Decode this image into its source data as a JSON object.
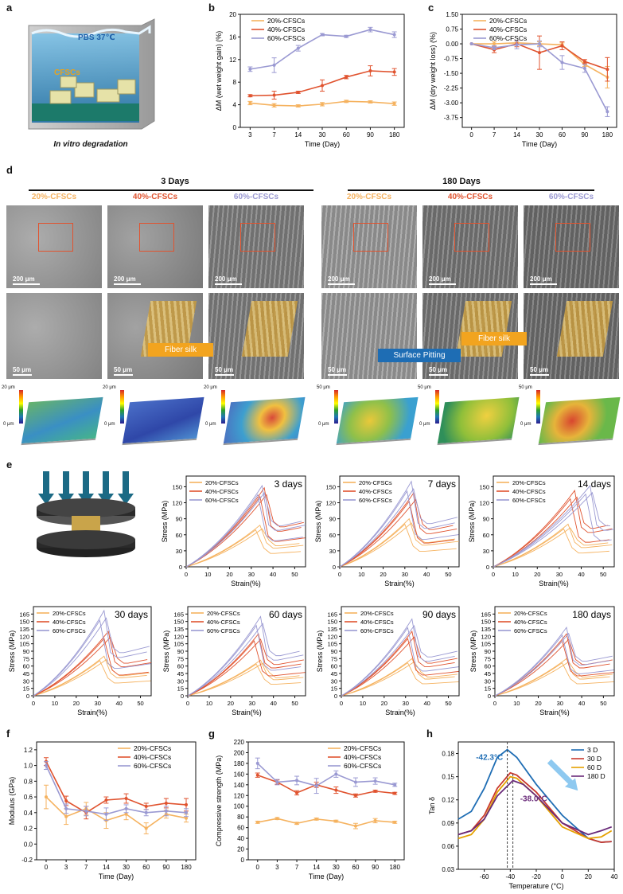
{
  "colors": {
    "c20": "#F5B25F",
    "c40": "#E0532F",
    "c60": "#9A99D2",
    "d3": "#1E6DB4",
    "d30": "#C9392E",
    "d60": "#E5A100",
    "d180": "#6A2B7A"
  },
  "panel_a": {
    "letter": "a",
    "liquid_label": "PBS  37℃",
    "sample_label": "CFSCs",
    "caption": "In vitro degradation"
  },
  "panel_d": {
    "letter": "d",
    "group_3": "3 Days",
    "group_180": "180 Days",
    "labels": [
      "20%-CFSCs",
      "40%-CFSCs",
      "60%-CFSCs",
      "20%-CFSCs",
      "40%-CFSCs",
      "60%-CFSCs"
    ],
    "scale_200": "200 μm",
    "scale_50": "50 μm",
    "callout_fiber_1": "Fiber silk",
    "callout_pitting": "Surface Pitting",
    "callout_fiber_2": "Fiber silk",
    "zmax_3": "20 μm",
    "zmax_180": "50 μm",
    "zmin": "0 μm"
  },
  "panel_e_letter": "e",
  "chart_data": [
    {
      "id": "b",
      "type": "line",
      "title": "",
      "xlabel": "Time (Day)",
      "ylabel": "ΔM (wet weight gain) (%)",
      "categories": [
        "3",
        "7",
        "14",
        "30",
        "60",
        "90",
        "180"
      ],
      "ylim": [
        0,
        20
      ],
      "yticks": [
        0,
        4,
        8,
        12,
        16,
        20
      ],
      "series": [
        {
          "name": "20%-CFSCs",
          "values": [
            4.3,
            3.9,
            3.8,
            4.1,
            4.6,
            4.5,
            4.2
          ],
          "err": [
            0.3,
            0.3,
            0.2,
            0.3,
            0.2,
            0.2,
            0.3
          ]
        },
        {
          "name": "40%-CFSCs",
          "values": [
            5.6,
            5.7,
            6.2,
            7.4,
            8.9,
            10.0,
            9.8
          ],
          "err": [
            0.2,
            0.7,
            0.2,
            1.0,
            0.3,
            0.9,
            0.6
          ]
        },
        {
          "name": "60%-CFSCs",
          "values": [
            10.3,
            11.0,
            14.0,
            16.4,
            16.1,
            17.3,
            16.4
          ],
          "err": [
            0.4,
            1.3,
            0.5,
            0.2,
            0.2,
            0.4,
            0.5
          ]
        }
      ]
    },
    {
      "id": "c",
      "type": "line",
      "title": "",
      "xlabel": "Time (Day)",
      "ylabel": "ΔM (dry weight loss) (%)",
      "categories": [
        "0",
        "7",
        "14",
        "30",
        "60",
        "90",
        "180"
      ],
      "ylim": [
        -4.25,
        1.5
      ],
      "yticks": [
        1.5,
        0.75,
        0.0,
        -0.75,
        -1.5,
        -2.25,
        -3.0,
        -3.75
      ],
      "series": [
        {
          "name": "20%-CFSCs",
          "values": [
            0,
            0.0,
            0.05,
            0.0,
            -0.05,
            -1.05,
            -1.7
          ],
          "err": [
            0,
            0.1,
            0.1,
            0.1,
            0.1,
            0.1,
            0.55
          ]
        },
        {
          "name": "40%-CFSCs",
          "values": [
            0,
            -0.3,
            0.0,
            -0.45,
            -0.1,
            -0.9,
            -1.3
          ],
          "err": [
            0,
            0.15,
            0.15,
            0.85,
            0.2,
            0.1,
            0.6
          ]
        },
        {
          "name": "60%-CFSCs",
          "values": [
            0,
            -0.2,
            -0.05,
            0.0,
            -0.95,
            -1.25,
            -3.45
          ],
          "err": [
            0,
            0.1,
            0.2,
            0.15,
            0.35,
            0.2,
            0.25
          ]
        }
      ]
    },
    {
      "id": "e1",
      "type": "line",
      "title": "3 days",
      "xlabel": "Strain(%)",
      "ylabel": "Stress (MPa)",
      "ylim": [
        0,
        170
      ],
      "xlim": [
        0,
        55
      ],
      "yticks": [
        0,
        30,
        60,
        90,
        120,
        150
      ],
      "xticks": [
        0,
        10,
        20,
        30,
        40,
        50
      ],
      "peaks": [
        {
          "series": "20%-CFSCs",
          "strain": 34,
          "stress": 78
        },
        {
          "series": "40%-CFSCs",
          "strain": 36,
          "stress": 148
        },
        {
          "series": "60%-CFSCs",
          "strain": 35,
          "stress": 152
        }
      ]
    },
    {
      "id": "e2",
      "type": "line",
      "title": "7 days",
      "xlabel": "Strain(%)",
      "ylabel": "Stress (MPa)",
      "ylim": [
        0,
        170
      ],
      "xlim": [
        0,
        55
      ],
      "yticks": [
        0,
        30,
        60,
        90,
        120,
        150
      ],
      "xticks": [
        0,
        10,
        20,
        30,
        40,
        50
      ],
      "peaks": [
        {
          "series": "20%-CFSCs",
          "strain": 32,
          "stress": 90
        },
        {
          "series": "40%-CFSCs",
          "strain": 34,
          "stress": 138
        },
        {
          "series": "60%-CFSCs",
          "strain": 33,
          "stress": 160
        }
      ]
    },
    {
      "id": "e3",
      "type": "line",
      "title": "14 days",
      "xlabel": "Strain(%)",
      "ylabel": "Stress (MPa)",
      "ylim": [
        0,
        170
      ],
      "xlim": [
        0,
        55
      ],
      "yticks": [
        0,
        30,
        60,
        90,
        120,
        150
      ],
      "xticks": [
        0,
        10,
        20,
        30,
        40,
        50
      ],
      "peaks": [
        {
          "series": "20%-CFSCs",
          "strain": 34,
          "stress": 80
        },
        {
          "series": "40%-CFSCs",
          "strain": 37,
          "stress": 143
        },
        {
          "series": "60%-CFSCs",
          "strain": 44,
          "stress": 152
        }
      ]
    },
    {
      "id": "e4",
      "type": "line",
      "title": "30 days",
      "xlabel": "Strain(%)",
      "ylabel": "Stress (MPa)",
      "ylim": [
        0,
        180
      ],
      "xlim": [
        0,
        55
      ],
      "yticks": [
        0,
        15,
        30,
        45,
        60,
        75,
        90,
        105,
        120,
        135,
        150,
        165
      ],
      "xticks": [
        0,
        10,
        20,
        30,
        40,
        50
      ],
      "peaks": [
        {
          "series": "20%-CFSCs",
          "strain": 33,
          "stress": 80
        },
        {
          "series": "40%-CFSCs",
          "strain": 35,
          "stress": 130
        },
        {
          "series": "60%-CFSCs",
          "strain": 33,
          "stress": 172
        }
      ]
    },
    {
      "id": "e5",
      "type": "line",
      "title": "60 days",
      "xlabel": "Strain(%)",
      "ylabel": "Stress (MPa)",
      "ylim": [
        0,
        180
      ],
      "xlim": [
        0,
        55
      ],
      "yticks": [
        0,
        15,
        30,
        45,
        60,
        75,
        90,
        105,
        120,
        135,
        150,
        165
      ],
      "xticks": [
        0,
        10,
        20,
        30,
        40,
        50
      ],
      "peaks": [
        {
          "series": "20%-CFSCs",
          "strain": 34,
          "stress": 72
        },
        {
          "series": "40%-CFSCs",
          "strain": 33,
          "stress": 125
        },
        {
          "series": "60%-CFSCs",
          "strain": 34,
          "stress": 160
        }
      ]
    },
    {
      "id": "e6",
      "type": "line",
      "title": "90 days",
      "xlabel": "Strain(%)",
      "ylabel": "Stress (MPa)",
      "ylim": [
        0,
        180
      ],
      "xlim": [
        0,
        55
      ],
      "yticks": [
        0,
        15,
        30,
        45,
        60,
        75,
        90,
        105,
        120,
        135,
        150,
        165
      ],
      "xticks": [
        0,
        10,
        20,
        30,
        40,
        50
      ],
      "peaks": [
        {
          "series": "20%-CFSCs",
          "strain": 33,
          "stress": 75
        },
        {
          "series": "40%-CFSCs",
          "strain": 33,
          "stress": 130
        },
        {
          "series": "60%-CFSCs",
          "strain": 33,
          "stress": 155
        }
      ]
    },
    {
      "id": "e7",
      "type": "line",
      "title": "180 days",
      "xlabel": "Strain(%)",
      "ylabel": "Stress (MPa)",
      "ylim": [
        0,
        180
      ],
      "xlim": [
        0,
        55
      ],
      "yticks": [
        0,
        15,
        30,
        45,
        60,
        75,
        90,
        105,
        120,
        135,
        150,
        165
      ],
      "xticks": [
        0,
        10,
        20,
        30,
        40,
        50
      ],
      "peaks": [
        {
          "series": "20%-CFSCs",
          "strain": 33,
          "stress": 75
        },
        {
          "series": "40%-CFSCs",
          "strain": 33,
          "stress": 125
        },
        {
          "series": "60%-CFSCs",
          "strain": 33,
          "stress": 138
        }
      ]
    },
    {
      "id": "f",
      "type": "line",
      "title": "",
      "xlabel": "Time (Day)",
      "ylabel": "Modulus (GPa)",
      "categories": [
        "0",
        "3",
        "7",
        "14",
        "30",
        "60",
        "90",
        "180"
      ],
      "ylim": [
        -0.2,
        1.3
      ],
      "yticks": [
        -0.2,
        0.0,
        0.2,
        0.4,
        0.6,
        0.8,
        1.0,
        1.2
      ],
      "series": [
        {
          "name": "20%-CFSCs",
          "values": [
            0.6,
            0.35,
            0.45,
            0.3,
            0.38,
            0.2,
            0.38,
            0.33
          ],
          "err": [
            0.15,
            0.1,
            0.08,
            0.1,
            0.07,
            0.07,
            0.05,
            0.05
          ]
        },
        {
          "name": "40%-CFSCs",
          "values": [
            1.05,
            0.55,
            0.4,
            0.56,
            0.58,
            0.48,
            0.52,
            0.5
          ],
          "err": [
            0.05,
            0.06,
            0.08,
            0.04,
            0.06,
            0.04,
            0.06,
            0.08
          ]
        },
        {
          "name": "60%-CFSCs",
          "values": [
            1.0,
            0.45,
            0.42,
            0.38,
            0.45,
            0.4,
            0.42,
            0.4
          ],
          "err": [
            0.05,
            0.06,
            0.06,
            0.08,
            0.05,
            0.04,
            0.06,
            0.05
          ]
        }
      ]
    },
    {
      "id": "g",
      "type": "line",
      "title": "",
      "xlabel": "Time (Day)",
      "ylabel": "Compressive strength (MPa)",
      "categories": [
        "0",
        "3",
        "7",
        "14",
        "30",
        "60",
        "90",
        "180"
      ],
      "ylim": [
        0,
        220
      ],
      "yticks": [
        0,
        20,
        40,
        60,
        80,
        100,
        120,
        140,
        160,
        180,
        200,
        220
      ],
      "series": [
        {
          "name": "20%-CFSCs",
          "values": [
            70,
            77,
            68,
            76,
            72,
            63,
            73,
            70
          ],
          "err": [
            2,
            2,
            2,
            2,
            2,
            5,
            4,
            2
          ]
        },
        {
          "name": "40%-CFSCs",
          "values": [
            158,
            145,
            125,
            140,
            130,
            120,
            128,
            124
          ],
          "err": [
            4,
            4,
            4,
            5,
            6,
            3,
            2,
            2
          ]
        },
        {
          "name": "60%-CFSCs",
          "values": [
            180,
            145,
            148,
            138,
            160,
            145,
            147,
            140
          ],
          "err": [
            10,
            5,
            8,
            14,
            6,
            8,
            6,
            3
          ]
        }
      ]
    },
    {
      "id": "h",
      "type": "line",
      "title": "",
      "xlabel": "Temperature (°C)",
      "ylabel": "Tan δ",
      "xlim": [
        -80,
        40
      ],
      "ylim": [
        0.03,
        0.195
      ],
      "yticks": [
        0.03,
        0.06,
        0.09,
        0.12,
        0.15,
        0.18
      ],
      "xticks": [
        -60,
        -40,
        -20,
        0,
        20,
        40
      ],
      "series": [
        {
          "name": "3 D",
          "x": [
            -80,
            -70,
            -60,
            -50,
            -42.3,
            -35,
            -20,
            0,
            20,
            30,
            38
          ],
          "y": [
            0.095,
            0.105,
            0.135,
            0.175,
            0.185,
            0.175,
            0.14,
            0.1,
            0.07,
            0.065,
            0.066
          ]
        },
        {
          "name": "30 D",
          "x": [
            -80,
            -70,
            -60,
            -50,
            -40,
            -35,
            -20,
            0,
            20,
            30,
            38
          ],
          "y": [
            0.075,
            0.08,
            0.1,
            0.135,
            0.155,
            0.152,
            0.13,
            0.09,
            0.07,
            0.065,
            0.066
          ]
        },
        {
          "name": "60 D",
          "x": [
            -80,
            -70,
            -60,
            -50,
            -40,
            -35,
            -20,
            0,
            20,
            30,
            38
          ],
          "y": [
            0.07,
            0.075,
            0.095,
            0.13,
            0.15,
            0.148,
            0.125,
            0.085,
            0.07,
            0.072,
            0.08
          ]
        },
        {
          "name": "180 D",
          "x": [
            -80,
            -70,
            -60,
            -50,
            -38,
            -30,
            -20,
            0,
            20,
            30,
            38
          ],
          "y": [
            0.075,
            0.08,
            0.095,
            0.125,
            0.145,
            0.14,
            0.125,
            0.09,
            0.075,
            0.08,
            0.085
          ]
        }
      ],
      "annotations": [
        "-42.3°C",
        "-38.0°C"
      ]
    }
  ]
}
